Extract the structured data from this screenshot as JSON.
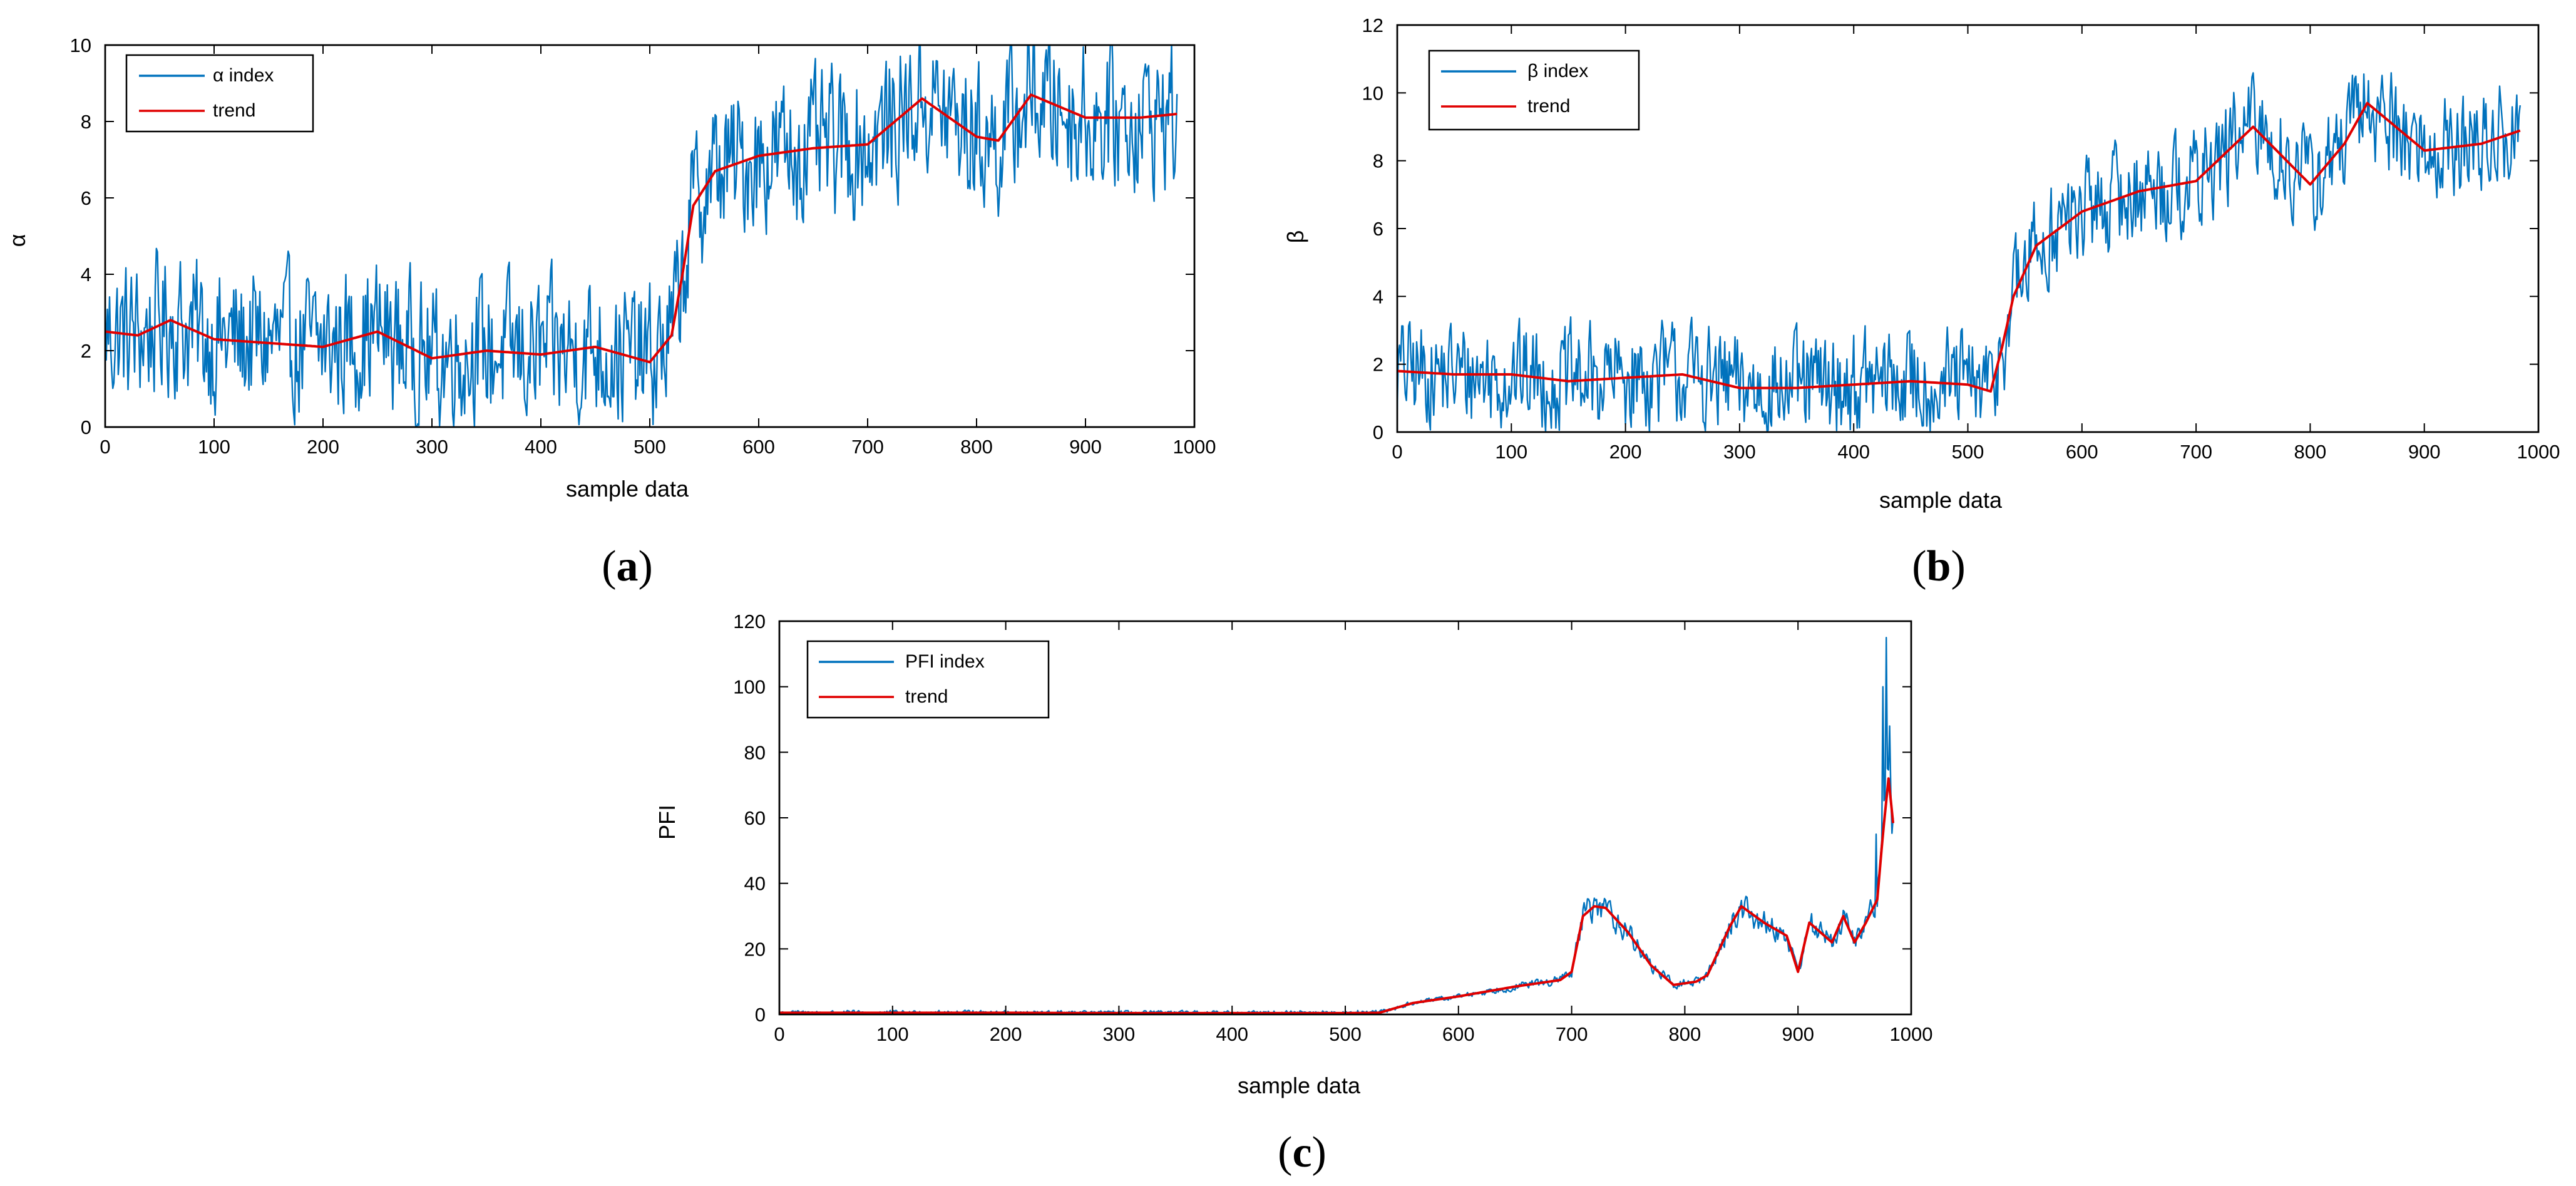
{
  "chart_data": [
    {
      "type": "line",
      "id": "a",
      "caption_open": "(",
      "caption_letter": "a",
      "caption_close": ")",
      "xlabel": "sample data",
      "ylabel": "α",
      "xlim": [
        0,
        1000
      ],
      "ylim": [
        0,
        10
      ],
      "xticks": [
        0,
        100,
        200,
        300,
        400,
        500,
        600,
        700,
        800,
        900,
        1000
      ],
      "yticks": [
        0,
        2,
        4,
        6,
        8,
        10
      ],
      "legend_position": "top-left",
      "n_samples": 985,
      "noise_amplitude": 1.7,
      "series": [
        {
          "name": "α index",
          "color": "#0072BD",
          "role": "noisy"
        },
        {
          "name": "trend",
          "color": "#E00000",
          "role": "trend",
          "x": [
            0,
            30,
            60,
            100,
            150,
            200,
            250,
            300,
            350,
            400,
            450,
            500,
            520,
            530,
            540,
            560,
            600,
            650,
            700,
            750,
            800,
            820,
            850,
            900,
            950,
            985
          ],
          "y": [
            2.5,
            2.4,
            2.8,
            2.3,
            2.2,
            2.1,
            2.5,
            1.8,
            2.0,
            1.9,
            2.1,
            1.7,
            2.4,
            4.0,
            5.8,
            6.7,
            7.1,
            7.3,
            7.4,
            8.6,
            7.6,
            7.5,
            8.7,
            8.1,
            8.1,
            8.2
          ]
        }
      ]
    },
    {
      "type": "line",
      "id": "b",
      "caption_open": "(",
      "caption_letter": "b",
      "caption_close": ")",
      "xlabel": "sample data",
      "ylabel": "β",
      "xlim": [
        0,
        1000
      ],
      "ylim": [
        0,
        12
      ],
      "xticks": [
        0,
        100,
        200,
        300,
        400,
        500,
        600,
        700,
        800,
        900,
        1000
      ],
      "yticks": [
        0,
        2,
        4,
        6,
        8,
        10,
        12
      ],
      "legend_position": "top-left",
      "n_samples": 985,
      "noise_amplitude": 1.4,
      "series": [
        {
          "name": "β index",
          "color": "#0072BD",
          "role": "noisy"
        },
        {
          "name": "trend",
          "color": "#E00000",
          "role": "trend",
          "x": [
            0,
            50,
            100,
            150,
            200,
            250,
            300,
            350,
            400,
            450,
            500,
            520,
            530,
            540,
            560,
            600,
            650,
            700,
            750,
            800,
            830,
            850,
            900,
            950,
            985
          ],
          "y": [
            1.8,
            1.7,
            1.7,
            1.5,
            1.6,
            1.7,
            1.3,
            1.3,
            1.4,
            1.5,
            1.4,
            1.2,
            2.5,
            4.0,
            5.5,
            6.5,
            7.1,
            7.4,
            9.0,
            7.3,
            8.5,
            9.7,
            8.3,
            8.5,
            8.9
          ]
        }
      ]
    },
    {
      "type": "line",
      "id": "c",
      "caption_open": "(",
      "caption_letter": "c",
      "caption_close": ")",
      "xlabel": "sample data",
      "ylabel": "PFI",
      "xlim": [
        0,
        1000
      ],
      "ylim": [
        0,
        120
      ],
      "xticks": [
        0,
        100,
        200,
        300,
        400,
        500,
        600,
        700,
        800,
        900,
        1000
      ],
      "yticks": [
        0,
        20,
        40,
        60,
        80,
        100,
        120
      ],
      "legend_position": "top-left",
      "n_samples": 985,
      "noise_amplitude": 0.12,
      "spikes": [
        [
          975,
          100
        ],
        [
          978,
          115
        ],
        [
          981,
          88
        ],
        [
          984,
          60
        ],
        [
          969,
          55
        ]
      ],
      "series": [
        {
          "name": "PFI index",
          "color": "#0072BD",
          "role": "noisy"
        },
        {
          "name": "trend",
          "color": "#E00000",
          "role": "trend",
          "x": [
            0,
            100,
            200,
            300,
            400,
            500,
            530,
            560,
            600,
            650,
            690,
            700,
            710,
            720,
            730,
            750,
            770,
            790,
            810,
            820,
            840,
            850,
            870,
            890,
            900,
            910,
            930,
            940,
            950,
            960,
            970,
            975,
            980,
            985
          ],
          "y": [
            0.5,
            0.5,
            0.5,
            0.4,
            0.4,
            0.4,
            0.5,
            3.5,
            5.5,
            8.5,
            10.5,
            13.0,
            30.0,
            33.0,
            32.5,
            25.0,
            15.0,
            9.0,
            10.0,
            12.0,
            27.0,
            33.0,
            28.0,
            24.0,
            13.0,
            28.0,
            22.0,
            30.0,
            22.0,
            28.0,
            35.0,
            55.0,
            72.0,
            55.0
          ]
        }
      ]
    }
  ]
}
